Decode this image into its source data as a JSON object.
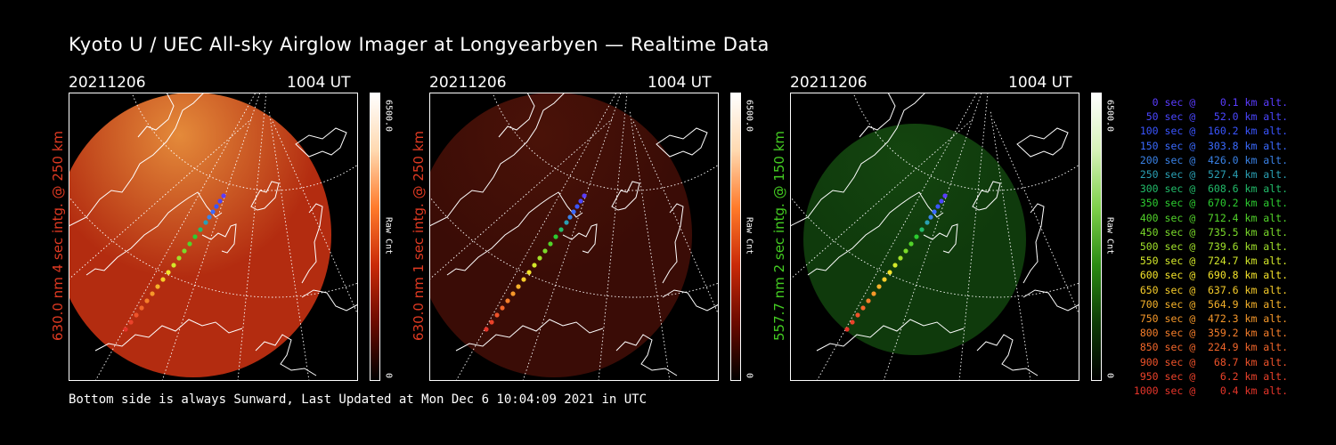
{
  "title": "Kyoto U / UEC All-sky Airglow Imager at Longyearbyen — Realtime Data",
  "panels": [
    {
      "date": "20211206",
      "time": "1004 UT",
      "label": "630.0 nm 4 sec intg. @ 250 km",
      "label_color": "#e03a22",
      "cbar_max": "6500.0",
      "cbar_min": "0",
      "cbar_unit": "Raw Cnt",
      "cmap_colors": [
        "#000000",
        "#6b0a00",
        "#c92a08",
        "#ff7a2a",
        "#ffd9b0",
        "#ffffff"
      ],
      "disk": {
        "fill": "#b32c10",
        "glow": "#e48a3a",
        "opacity": 1.0
      }
    },
    {
      "date": "20211206",
      "time": "1004 UT",
      "label": "630.0 nm 1 sec intg. @ 250 km",
      "label_color": "#e03a22",
      "cbar_max": "6500.0",
      "cbar_min": "0",
      "cbar_unit": "Raw Cnt",
      "cmap_colors": [
        "#000000",
        "#6b0a00",
        "#c92a08",
        "#ff7a2a",
        "#ffd9b0",
        "#ffffff"
      ],
      "disk": {
        "fill": "#3a0c06",
        "glow": "#4a1208",
        "opacity": 1.0
      }
    },
    {
      "date": "20211206",
      "time": "1004 UT",
      "label": "557.7 nm 2 sec intg. @ 150 km",
      "label_color": "#44cc22",
      "cbar_max": "6500.0",
      "cbar_min": "0",
      "cbar_unit": "Raw Cnt",
      "cmap_colors": [
        "#000000",
        "#0d3a05",
        "#2a8a12",
        "#7ed04a",
        "#d6f2b8",
        "#ffffff"
      ],
      "disk": {
        "fill": "#0f3a0c",
        "glow": "#14450f",
        "opacity": 1.0
      }
    }
  ],
  "footer": "Bottom side is always Sunward, Last Updated at Mon Dec  6 10:04:09 2021 in UTC",
  "legend": [
    {
      "text": "   0 sec @    0.1 km alt.",
      "color": "#5a3cff"
    },
    {
      "text": "  50 sec @   52.0 km alt.",
      "color": "#4a46ff"
    },
    {
      "text": " 100 sec @  160.2 km alt.",
      "color": "#3a55ff"
    },
    {
      "text": " 150 sec @  303.8 km alt.",
      "color": "#3a6aff"
    },
    {
      "text": " 200 sec @  426.0 km alt.",
      "color": "#3a82e6"
    },
    {
      "text": " 250 sec @  527.4 km alt.",
      "color": "#2aa0b4"
    },
    {
      "text": " 300 sec @  608.6 km alt.",
      "color": "#22bc6a"
    },
    {
      "text": " 350 sec @  670.2 km alt.",
      "color": "#2ccc30"
    },
    {
      "text": " 400 sec @  712.4 km alt.",
      "color": "#52d42a"
    },
    {
      "text": " 450 sec @  735.5 km alt.",
      "color": "#7ada2a"
    },
    {
      "text": " 500 sec @  739.6 km alt.",
      "color": "#a0e02a"
    },
    {
      "text": " 550 sec @  724.7 km alt.",
      "color": "#d4e82a"
    },
    {
      "text": " 600 sec @  690.8 km alt.",
      "color": "#f4e42a"
    },
    {
      "text": " 650 sec @  637.6 km alt.",
      "color": "#f6cc2a"
    },
    {
      "text": " 700 sec @  564.9 km alt.",
      "color": "#f6b22a"
    },
    {
      "text": " 750 sec @  472.3 km alt.",
      "color": "#f6982a"
    },
    {
      "text": " 800 sec @  359.2 km alt.",
      "color": "#f67e2a"
    },
    {
      "text": " 850 sec @  224.9 km alt.",
      "color": "#f2662a"
    },
    {
      "text": " 900 sec @   68.7 km alt.",
      "color": "#ee522a"
    },
    {
      "text": " 950 sec @    6.2 km alt.",
      "color": "#ea422a"
    },
    {
      "text": "1000 sec @    0.4 km alt.",
      "color": "#e6352a"
    }
  ]
}
